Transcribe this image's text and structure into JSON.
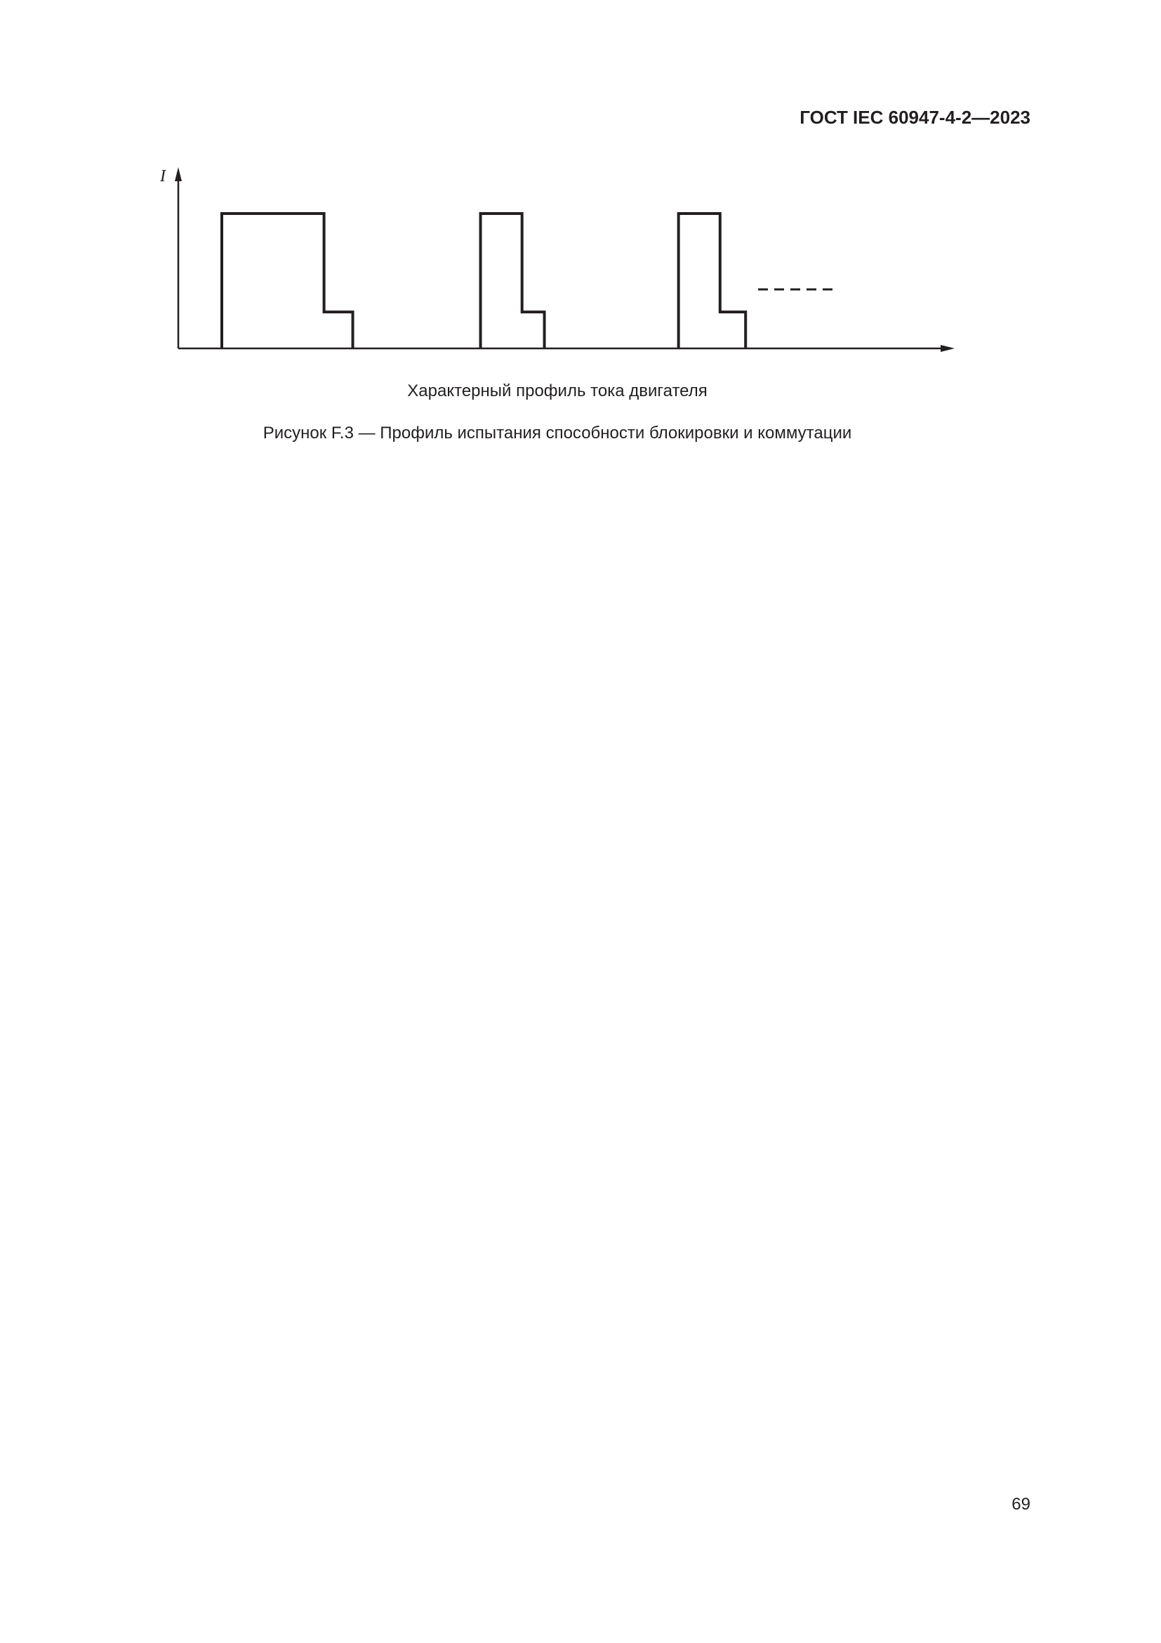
{
  "header": {
    "doc_id": "ГОСТ IEC 60947-4-2—2023"
  },
  "figure": {
    "subtitle": "Характерный профиль тока двигателя",
    "caption": "Рисунок F.3 — Профиль испытания способности блокировки и коммутации"
  },
  "chart_data": {
    "type": "line",
    "ylabel": "I",
    "xlabel": "",
    "grid": false,
    "pulses": [
      {
        "start": 0.0,
        "step": 0.32,
        "end": 0.41,
        "high": 1.0,
        "low": 0.27
      },
      {
        "start": 0.81,
        "step": 0.94,
        "end": 1.01,
        "high": 1.0,
        "low": 0.27
      },
      {
        "start": 1.43,
        "step": 1.56,
        "end": 1.64,
        "high": 1.0,
        "low": 0.27
      }
    ],
    "continuation": "dashed line at low level indicating repetition"
  },
  "footer": {
    "page_number": "69"
  }
}
